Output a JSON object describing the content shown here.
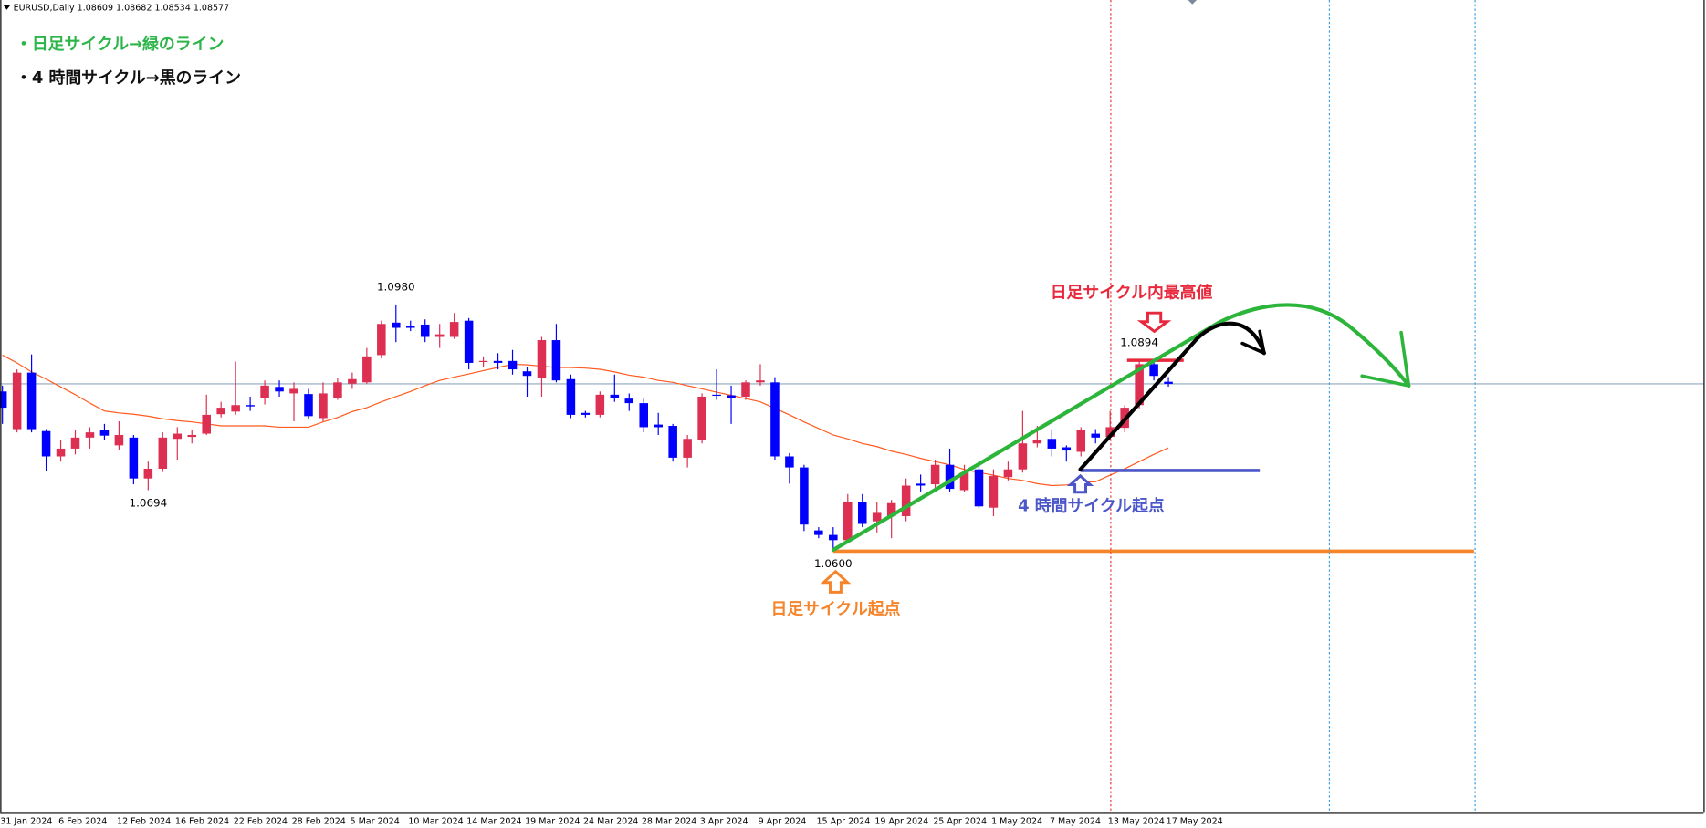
{
  "chart_data": {
    "type": "candlestick",
    "symbol": "EURUSD,Daily",
    "notes": [
      "・日足サイクル→緑のライン",
      "・4 時間サイクル→黒のライン"
    ],
    "annotations": [
      "日足サイクル内最高値",
      "日足サイクル起点",
      "4 時間サイクル起点"
    ],
    "categories": [
      "31 Jan 2024",
      null,
      null,
      null,
      "6 Feb 2024",
      null,
      null,
      null,
      "12 Feb 2024",
      null,
      null,
      null,
      "16 Feb 2024",
      null,
      null,
      null,
      "22 Feb 2024",
      null,
      null,
      null,
      "28 Feb 2024",
      null,
      null,
      null,
      "5 Mar 2024",
      null,
      null,
      null,
      "10 Mar 2024",
      null,
      null,
      null,
      "14 Mar 2024",
      null,
      null,
      null,
      "19 Mar 2024",
      null,
      null,
      null,
      "24 Mar 2024",
      null,
      null,
      null,
      "28 Mar 2024",
      null,
      null,
      null,
      "3 Apr 2024",
      null,
      null,
      null,
      "9 Apr 2024",
      null,
      null,
      null,
      "15 Apr 2024",
      null,
      null,
      null,
      "19 Apr 2024",
      null,
      null,
      null,
      "25 Apr 2024",
      null,
      null,
      null,
      "1 May 2024",
      null,
      null,
      null,
      "7 May 2024",
      null,
      null,
      null,
      "13 May 2024",
      null,
      null,
      null,
      "17 May 2024"
    ],
    "open": [
      1.0846,
      1.0788,
      1.0875,
      1.0785,
      1.0746,
      1.0758,
      1.0775,
      1.0786,
      1.0763,
      1.0775,
      1.0712,
      1.0727,
      1.0773,
      1.0776,
      1.0781,
      1.0811,
      1.0815,
      1.0825,
      1.0836,
      1.0853,
      1.0843,
      1.0842,
      1.0805,
      1.0836,
      1.0858,
      1.086,
      1.0902,
      1.0952,
      1.0947,
      1.0949,
      1.093,
      1.093,
      1.0955,
      1.0892,
      1.0893,
      1.0893,
      1.0877,
      1.0867,
      1.0925,
      1.0865,
      1.0813,
      1.081,
      1.0841,
      1.0835,
      1.0828,
      1.0795,
      1.0793,
      1.0744,
      1.0771,
      1.0841,
      1.084,
      1.0838,
      1.086,
      1.086,
      1.0746,
      1.0729,
      1.0632,
      1.0625,
      1.0617,
      1.0676,
      1.0646,
      1.0654,
      1.0654,
      1.0704,
      1.0703,
      1.0733,
      1.0694,
      1.0726,
      1.0667,
      1.0714,
      1.0726,
      1.0766,
      1.0773,
      1.076,
      1.0753,
      1.0781,
      1.0776,
      1.079,
      1.0825,
      1.0888,
      1.08609
    ],
    "high": [
      1.0855,
      1.088,
      1.0903,
      1.0788,
      1.0771,
      1.0786,
      1.0791,
      1.0796,
      1.08,
      1.0779,
      1.0738,
      1.0783,
      1.0791,
      1.0786,
      1.0841,
      1.083,
      1.0892,
      1.0838,
      1.0863,
      1.0863,
      1.086,
      1.085,
      1.086,
      1.0867,
      1.0875,
      1.0913,
      1.0955,
      1.098,
      1.0955,
      1.0957,
      1.095,
      1.0967,
      1.0959,
      1.09,
      1.0905,
      1.091,
      1.0883,
      1.093,
      1.095,
      1.0872,
      1.0816,
      1.0846,
      1.0872,
      1.0843,
      1.0835,
      1.0813,
      1.0796,
      1.0779,
      1.0843,
      1.088,
      1.0855,
      1.0863,
      1.0888,
      1.0868,
      1.0751,
      1.0733,
      1.0637,
      1.0637,
      1.0688,
      1.0688,
      1.0676,
      1.0679,
      1.0712,
      1.0718,
      1.0741,
      1.0758,
      1.0733,
      1.0738,
      1.0726,
      1.0738,
      1.0816,
      1.0793,
      1.0788,
      1.0763,
      1.0791,
      1.0788,
      1.0816,
      1.0825,
      1.0894,
      1.0891,
      1.08682
    ],
    "low": [
      1.0796,
      1.0783,
      1.0783,
      1.0724,
      1.0738,
      1.0749,
      1.0758,
      1.0771,
      1.0756,
      1.0703,
      1.0694,
      1.0722,
      1.0741,
      1.0766,
      1.0779,
      1.0806,
      1.081,
      1.0816,
      1.0826,
      1.0838,
      1.08,
      1.0803,
      1.08,
      1.0833,
      1.085,
      1.0858,
      1.0897,
      1.0922,
      1.0939,
      1.0922,
      1.0913,
      1.0927,
      1.088,
      1.0883,
      1.088,
      1.0872,
      1.0838,
      1.0838,
      1.086,
      1.0805,
      1.0806,
      1.0806,
      1.083,
      1.0816,
      1.0783,
      1.0779,
      1.0738,
      1.0729,
      1.0766,
      1.0833,
      1.0796,
      1.0833,
      1.0855,
      1.0741,
      1.0704,
      1.0631,
      1.062,
      1.06,
      1.0612,
      1.0637,
      1.0629,
      1.062,
      1.0646,
      1.0692,
      1.0696,
      1.0692,
      1.0691,
      1.0666,
      1.0654,
      1.0709,
      1.0721,
      1.076,
      1.0746,
      1.0738,
      1.0746,
      1.0766,
      1.0771,
      1.0783,
      1.082,
      1.0863,
      1.08534
    ],
    "close": [
      1.0821,
      1.0875,
      1.0788,
      1.0746,
      1.0758,
      1.0775,
      1.0783,
      1.0778,
      1.0779,
      1.0712,
      1.0727,
      1.0775,
      1.0781,
      1.0779,
      1.081,
      1.0821,
      1.0825,
      1.0823,
      1.0855,
      1.0846,
      1.085,
      1.0808,
      1.0843,
      1.086,
      1.0865,
      1.09,
      1.095,
      1.0944,
      1.0944,
      1.093,
      1.0934,
      1.0953,
      1.089,
      1.0893,
      1.089,
      1.088,
      1.087,
      1.0925,
      1.0863,
      1.081,
      1.081,
      1.0841,
      1.0836,
      1.0828,
      1.0791,
      1.0791,
      1.0744,
      1.0773,
      1.0838,
      1.084,
      1.0836,
      1.086,
      1.0863,
      1.0746,
      1.0729,
      1.0641,
      1.0625,
      1.0617,
      1.0676,
      1.0642,
      1.0659,
      1.0674,
      1.0701,
      1.0701,
      1.0733,
      1.0696,
      1.0721,
      1.0669,
      1.0716,
      1.0726,
      1.0766,
      1.0771,
      1.0758,
      1.0755,
      1.0786,
      1.0775,
      1.0791,
      1.0821,
      1.0888,
      1.087,
      1.08577
    ],
    "high_value_labels": [
      null,
      null,
      null,
      null,
      null,
      null,
      null,
      null,
      null,
      null,
      null,
      null,
      null,
      null,
      null,
      null,
      null,
      null,
      null,
      null,
      null,
      null,
      null,
      null,
      null,
      null,
      null,
      "1.0980",
      null,
      null,
      null,
      null,
      null,
      null,
      null,
      null,
      null,
      null,
      null,
      null,
      null,
      null,
      null,
      null,
      null,
      null,
      null,
      null,
      null,
      null,
      null,
      null,
      null,
      null,
      null,
      null,
      null,
      null,
      null,
      null,
      null,
      null,
      null,
      null,
      null,
      null,
      null,
      null,
      null,
      null,
      null,
      null,
      null,
      null,
      null,
      null,
      null,
      null,
      "1.0894",
      null,
      null
    ],
    "low_value_labels": [
      null,
      null,
      null,
      null,
      null,
      null,
      null,
      null,
      null,
      null,
      "1.0694",
      null,
      null,
      null,
      null,
      null,
      null,
      null,
      null,
      null,
      null,
      null,
      null,
      null,
      null,
      null,
      null,
      null,
      null,
      null,
      null,
      null,
      null,
      null,
      null,
      null,
      null,
      null,
      null,
      null,
      null,
      null,
      null,
      null,
      null,
      null,
      null,
      null,
      null,
      null,
      null,
      null,
      null,
      null,
      null,
      null,
      null,
      "1.0600",
      null,
      null,
      null,
      null,
      null,
      null,
      null,
      null,
      null,
      null,
      null,
      null,
      null,
      null,
      null,
      null,
      null,
      null,
      null,
      null,
      null,
      null,
      null
    ],
    "ma_values": [
      1.0902,
      1.089,
      1.0876,
      1.0865,
      1.0853,
      1.0841,
      1.0828,
      1.0816,
      1.0813,
      1.0811,
      1.0808,
      1.0804,
      1.0801,
      1.0799,
      1.0796,
      1.0793,
      1.0793,
      1.0793,
      1.0793,
      1.0791,
      1.0791,
      1.0791,
      1.0799,
      1.0806,
      1.0815,
      1.0821,
      1.083,
      1.0838,
      1.0846,
      1.0855,
      1.0863,
      1.0868,
      1.0873,
      1.0878,
      1.0883,
      1.0888,
      1.0887,
      1.0885,
      1.0883,
      1.0883,
      1.0882,
      1.088,
      1.0876,
      1.0871,
      1.0868,
      1.0863,
      1.086,
      1.0855,
      1.085,
      1.0845,
      1.084,
      1.0835,
      1.083,
      1.082,
      1.081,
      1.0799,
      1.0789,
      1.0779,
      1.0773,
      1.0766,
      1.0761,
      1.0754,
      1.0749,
      1.0743,
      1.0738,
      1.0733,
      1.0726,
      1.0721,
      1.0717,
      1.0712,
      1.0709,
      1.0704,
      1.0701,
      1.0702,
      1.0706,
      1.0707,
      1.0717,
      1.0727,
      1.0738,
      1.0749,
      1.0759
    ],
    "up_color": "#dc2f51",
    "down_color": "#0000ff",
    "ma_color": "#ff5a1f",
    "ylim": [
      1.0197,
      1.1449
    ]
  }
}
